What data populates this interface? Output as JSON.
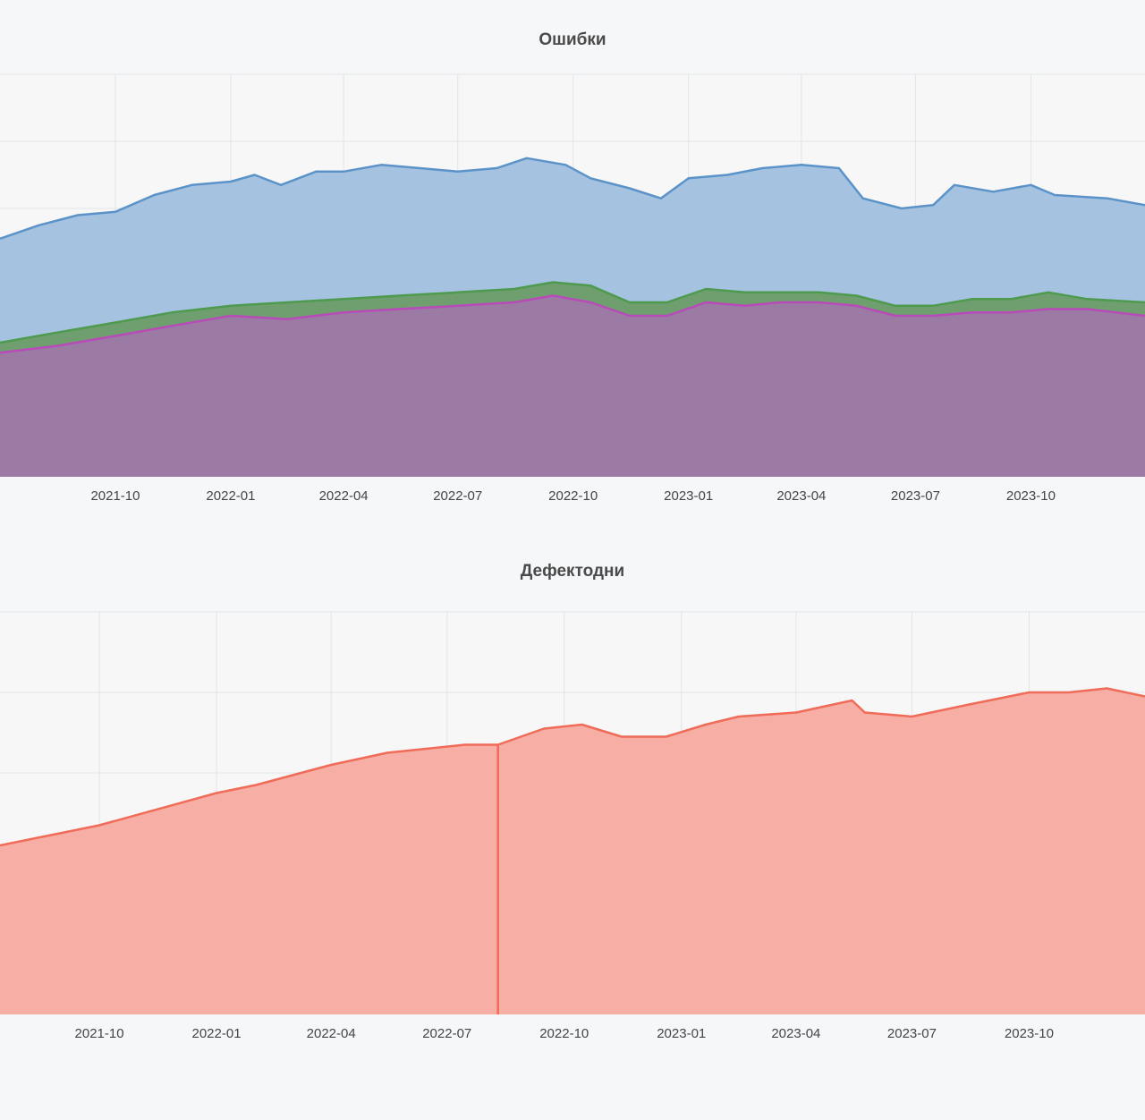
{
  "chart_data": [
    {
      "type": "area",
      "title": "Ошибки",
      "xlabel": "",
      "ylabel": "",
      "x_tick_labels": [
        "2021-10",
        "2022-01",
        "2022-04",
        "2022-07",
        "2022-10",
        "2023-01",
        "2023-04",
        "2023-07",
        "2023-10"
      ],
      "x_range": [
        "2021-07-01",
        "2023-12-31"
      ],
      "ylim": [
        0,
        6
      ],
      "grid": true,
      "legend": "none",
      "series": [
        {
          "color": "#5b93c9",
          "fill": "#a5c3e0",
          "points": [
            [
              "2021-07-01",
              3.55
            ],
            [
              "2021-08-01",
              3.75
            ],
            [
              "2021-09-01",
              3.9
            ],
            [
              "2021-10-01",
              3.95
            ],
            [
              "2021-11-01",
              4.2
            ],
            [
              "2021-12-01",
              4.35
            ],
            [
              "2022-01-01",
              4.4
            ],
            [
              "2022-01-20",
              4.5
            ],
            [
              "2022-02-10",
              4.35
            ],
            [
              "2022-03-10",
              4.55
            ],
            [
              "2022-04-01",
              4.55
            ],
            [
              "2022-05-01",
              4.65
            ],
            [
              "2022-06-01",
              4.6
            ],
            [
              "2022-07-01",
              4.55
            ],
            [
              "2022-08-01",
              4.6
            ],
            [
              "2022-08-25",
              4.75
            ],
            [
              "2022-09-25",
              4.65
            ],
            [
              "2022-10-15",
              4.45
            ],
            [
              "2022-11-15",
              4.3
            ],
            [
              "2022-12-10",
              4.15
            ],
            [
              "2023-01-01",
              4.45
            ],
            [
              "2023-02-01",
              4.5
            ],
            [
              "2023-03-01",
              4.6
            ],
            [
              "2023-04-01",
              4.65
            ],
            [
              "2023-05-01",
              4.6
            ],
            [
              "2023-05-20",
              4.15
            ],
            [
              "2023-06-20",
              4.0
            ],
            [
              "2023-07-15",
              4.05
            ],
            [
              "2023-08-01",
              4.35
            ],
            [
              "2023-09-01",
              4.25
            ],
            [
              "2023-10-01",
              4.35
            ],
            [
              "2023-10-20",
              4.2
            ],
            [
              "2023-12-01",
              4.15
            ],
            [
              "2023-12-31",
              4.05
            ]
          ]
        },
        {
          "color": "#4e9a4e",
          "fill": "#6f9e6f",
          "points": [
            [
              "2021-07-01",
              2.0
            ],
            [
              "2021-08-15",
              2.15
            ],
            [
              "2021-10-01",
              2.3
            ],
            [
              "2021-11-15",
              2.45
            ],
            [
              "2022-01-01",
              2.55
            ],
            [
              "2022-02-15",
              2.6
            ],
            [
              "2022-04-01",
              2.65
            ],
            [
              "2022-05-15",
              2.7
            ],
            [
              "2022-07-01",
              2.75
            ],
            [
              "2022-08-15",
              2.8
            ],
            [
              "2022-09-15",
              2.9
            ],
            [
              "2022-10-15",
              2.85
            ],
            [
              "2022-11-15",
              2.6
            ],
            [
              "2022-12-15",
              2.6
            ],
            [
              "2023-01-15",
              2.8
            ],
            [
              "2023-02-15",
              2.75
            ],
            [
              "2023-03-15",
              2.75
            ],
            [
              "2023-04-15",
              2.75
            ],
            [
              "2023-05-15",
              2.7
            ],
            [
              "2023-06-15",
              2.55
            ],
            [
              "2023-07-15",
              2.55
            ],
            [
              "2023-08-15",
              2.65
            ],
            [
              "2023-09-15",
              2.65
            ],
            [
              "2023-10-15",
              2.75
            ],
            [
              "2023-11-15",
              2.65
            ],
            [
              "2023-12-31",
              2.6
            ]
          ]
        },
        {
          "color": "#b94ab9",
          "fill": "#9b7ba3",
          "points": [
            [
              "2021-07-01",
              1.85
            ],
            [
              "2021-08-15",
              1.95
            ],
            [
              "2021-10-01",
              2.1
            ],
            [
              "2021-11-15",
              2.25
            ],
            [
              "2022-01-01",
              2.4
            ],
            [
              "2022-02-15",
              2.35
            ],
            [
              "2022-04-01",
              2.45
            ],
            [
              "2022-05-15",
              2.5
            ],
            [
              "2022-07-01",
              2.55
            ],
            [
              "2022-08-15",
              2.6
            ],
            [
              "2022-09-15",
              2.7
            ],
            [
              "2022-10-15",
              2.6
            ],
            [
              "2022-11-15",
              2.4
            ],
            [
              "2022-12-15",
              2.4
            ],
            [
              "2023-01-15",
              2.6
            ],
            [
              "2023-02-15",
              2.55
            ],
            [
              "2023-03-15",
              2.6
            ],
            [
              "2023-04-15",
              2.6
            ],
            [
              "2023-05-15",
              2.55
            ],
            [
              "2023-06-15",
              2.4
            ],
            [
              "2023-07-15",
              2.4
            ],
            [
              "2023-08-15",
              2.45
            ],
            [
              "2023-09-15",
              2.45
            ],
            [
              "2023-10-15",
              2.5
            ],
            [
              "2023-11-15",
              2.5
            ],
            [
              "2023-12-31",
              2.4
            ]
          ]
        }
      ]
    },
    {
      "type": "area",
      "title": "Дефектодни",
      "xlabel": "",
      "ylabel": "",
      "x_tick_labels": [
        "2021-10",
        "2022-01",
        "2022-04",
        "2022-07",
        "2022-10",
        "2023-01",
        "2023-04",
        "2023-07",
        "2023-10"
      ],
      "x_range": [
        "2021-07-15",
        "2023-12-31"
      ],
      "ylim": [
        0,
        5
      ],
      "grid": true,
      "legend": "none",
      "series": [
        {
          "color": "#f06b58",
          "fill": "#f6aea5",
          "points": [
            [
              "2021-07-15",
              2.1
            ],
            [
              "2021-10-01",
              2.35
            ],
            [
              "2022-01-01",
              2.75
            ],
            [
              "2022-02-01",
              2.85
            ],
            [
              "2022-04-01",
              3.1
            ],
            [
              "2022-05-15",
              3.25
            ],
            [
              "2022-07-15",
              3.35
            ],
            [
              "2022-08-10",
              3.35
            ],
            [
              "2022-09-15",
              3.55
            ],
            [
              "2022-10-15",
              3.6
            ],
            [
              "2022-11-15",
              3.45
            ],
            [
              "2022-12-20",
              3.45
            ],
            [
              "2023-01-20",
              3.6
            ],
            [
              "2023-02-15",
              3.7
            ],
            [
              "2023-04-01",
              3.75
            ],
            [
              "2023-05-15",
              3.9
            ],
            [
              "2023-05-25",
              3.75
            ],
            [
              "2023-07-01",
              3.7
            ],
            [
              "2023-08-15",
              3.85
            ],
            [
              "2023-10-01",
              4.0
            ],
            [
              "2023-11-01",
              4.0
            ],
            [
              "2023-12-01",
              4.05
            ],
            [
              "2023-12-31",
              3.95
            ]
          ]
        }
      ],
      "annotations": [
        {
          "type": "vertical-line",
          "x": "2022-08-10",
          "color": "#f06b58"
        }
      ]
    }
  ]
}
